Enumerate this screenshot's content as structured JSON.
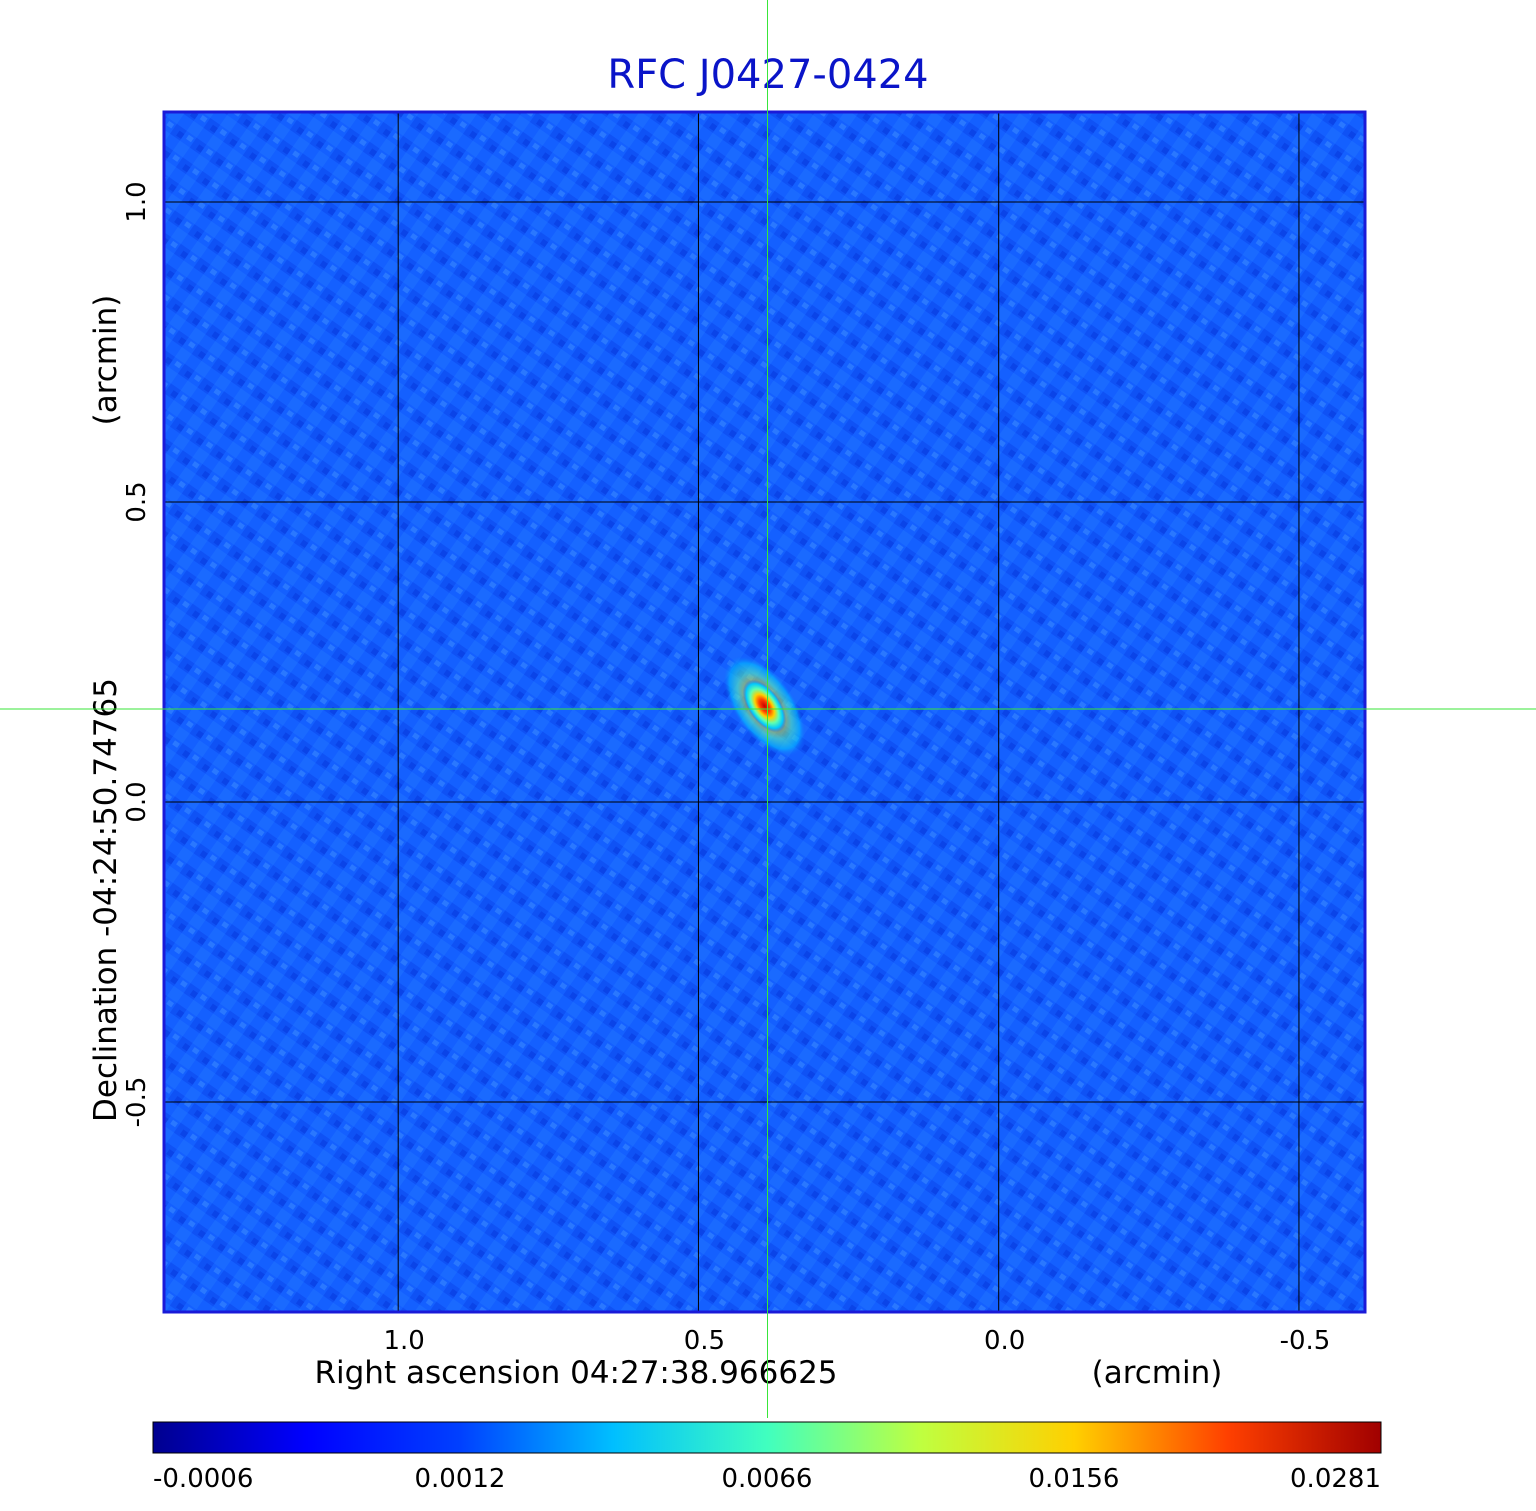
{
  "chart_data": {
    "type": "heatmap",
    "title": "RFC J0427-0424",
    "xlabel": "Right ascension  04:27:38.966625",
    "xlabel_unit": "(arcmin)",
    "ylabel": "Declination  -04:24:50.74765",
    "ylabel_unit": "(arcmin)",
    "x_ticks": [
      1.0,
      0.5,
      0.0,
      -0.5
    ],
    "x_tick_labels": [
      "1.0",
      "0.5",
      "0.0",
      "-0.5"
    ],
    "y_ticks": [
      1.0,
      0.5,
      0.0,
      -0.5
    ],
    "y_tick_labels": [
      "1.0",
      "0.5",
      "0.0",
      "-0.5"
    ],
    "xlim": [
      1.39,
      -0.61
    ],
    "ylim": [
      -0.85,
      1.15
    ],
    "grid": true,
    "colormap": "jet",
    "colorbar_ticks": [
      "-0.0006",
      "0.0012",
      "0.0066",
      "0.0156",
      "0.0281"
    ],
    "colorbar_range": [
      -0.0006,
      0.0281
    ],
    "peak": {
      "ra_offset": 0.39,
      "dec_offset": 0.16,
      "value": 0.0281
    },
    "crosshair": {
      "ra_offset": 0.385,
      "dec_offset": 0.155
    },
    "colors": {
      "title": "#0a14c8",
      "frame": "#1a1ad8",
      "grid": "#000000",
      "crosshair": "#39e639"
    }
  }
}
